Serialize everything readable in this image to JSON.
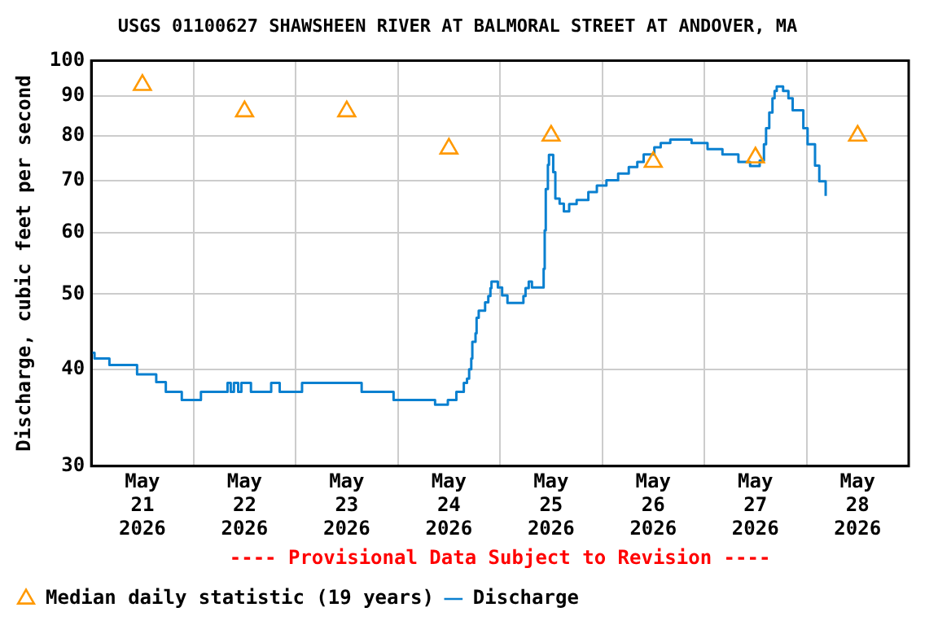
{
  "chart_data": {
    "type": "step",
    "title": "USGS 01100627 SHAWSHEEN RIVER AT BALMORAL STREET AT ANDOVER, MA",
    "ylabel": "Discharge, cubic feet per second",
    "annotations": [
      "---- Provisional Data Subject to Revision ----"
    ],
    "log": "y",
    "grid": true,
    "legend": "bottom",
    "xlim": [
      "2026-05-21",
      "2026-05-29"
    ],
    "xticks": [
      {
        "value": "2026-05-21T00:00",
        "label": null
      },
      {
        "value": "2026-05-21T12:00",
        "label": "May 21 2026"
      },
      {
        "value": "2026-05-22T00:00",
        "label": null
      },
      {
        "value": "2026-05-22T12:00",
        "label": "May 22 2026"
      },
      {
        "value": "2026-05-23T00:00",
        "label": null
      },
      {
        "value": "2026-05-23T12:00",
        "label": "May 23 2026"
      },
      {
        "value": "2026-05-24T00:00",
        "label": null
      },
      {
        "value": "2026-05-24T12:00",
        "label": "May 24 2026"
      },
      {
        "value": "2026-05-25T00:00",
        "label": null
      },
      {
        "value": "2026-05-25T12:00",
        "label": "May 25 2026"
      },
      {
        "value": "2026-05-26T00:00",
        "label": null
      },
      {
        "value": "2026-05-26T12:00",
        "label": "May 26 2026"
      },
      {
        "value": "2026-05-27T00:00",
        "label": null
      },
      {
        "value": "2026-05-27T12:00",
        "label": "May 27 2026"
      },
      {
        "value": "2026-05-28T00:00",
        "label": null
      },
      {
        "value": "2026-05-28T12:00",
        "label": "May 28 2026"
      },
      {
        "value": "2026-05-29T00:00",
        "label": null
      }
    ],
    "ylim": [
      30,
      100
    ],
    "yticks": [
      30,
      40,
      50,
      60,
      70,
      80,
      90,
      100
    ],
    "series": [
      {
        "name": "Median daily statistic (19 years)",
        "type": "scatter",
        "marker": "triangle",
        "color": "#ff9900",
        "x": [
          "2026-05-21T12:00",
          "2026-05-22T12:00",
          "2026-05-23T12:00",
          "2026-05-24T12:00",
          "2026-05-25T12:00",
          "2026-05-26T12:00",
          "2026-05-27T12:00",
          "2026-05-28T12:00"
        ],
        "values": [
          93,
          86,
          86,
          77,
          80,
          74,
          75,
          80
        ]
      },
      {
        "name": "Discharge",
        "type": "step",
        "marker": "none",
        "color": "#0a80d0",
        "x": [
          "2026-05-21T00:00",
          "2026-05-21T00:45",
          "2026-05-21T04:15",
          "2026-05-21T10:45",
          "2026-05-21T15:15",
          "2026-05-21T17:30",
          "2026-05-21T21:15",
          "2026-05-22T01:45",
          "2026-05-22T08:00",
          "2026-05-22T08:45",
          "2026-05-22T09:30",
          "2026-05-22T10:30",
          "2026-05-22T11:15",
          "2026-05-22T13:30",
          "2026-05-22T18:15",
          "2026-05-22T20:15",
          "2026-05-23T01:30",
          "2026-05-23T15:30",
          "2026-05-23T23:00",
          "2026-05-24T08:45",
          "2026-05-24T11:45",
          "2026-05-24T13:45",
          "2026-05-24T15:30",
          "2026-05-24T16:15",
          "2026-05-24T16:45",
          "2026-05-24T17:15",
          "2026-05-24T17:30",
          "2026-05-24T18:15",
          "2026-05-24T18:30",
          "2026-05-24T19:00",
          "2026-05-24T20:30",
          "2026-05-24T21:15",
          "2026-05-24T21:45",
          "2026-05-24T22:00",
          "2026-05-24T23:30",
          "2026-05-25T00:30",
          "2026-05-25T01:45",
          "2026-05-25T05:30",
          "2026-05-25T06:00",
          "2026-05-25T06:45",
          "2026-05-25T07:30",
          "2026-05-25T10:15",
          "2026-05-25T10:30",
          "2026-05-25T10:45",
          "2026-05-25T11:15",
          "2026-05-25T11:30",
          "2026-05-25T12:30",
          "2026-05-25T13:00",
          "2026-05-25T14:00",
          "2026-05-25T15:00",
          "2026-05-25T16:15",
          "2026-05-25T18:00",
          "2026-05-25T20:45",
          "2026-05-25T22:45",
          "2026-05-26T01:00",
          "2026-05-26T03:45",
          "2026-05-26T06:15",
          "2026-05-26T08:15",
          "2026-05-26T09:45",
          "2026-05-26T12:15",
          "2026-05-26T13:45",
          "2026-05-26T16:00",
          "2026-05-26T21:00",
          "2026-05-27T00:45",
          "2026-05-27T04:15",
          "2026-05-27T08:00",
          "2026-05-27T10:45",
          "2026-05-27T13:00",
          "2026-05-27T14:00",
          "2026-05-27T14:30",
          "2026-05-27T15:15",
          "2026-05-27T16:00",
          "2026-05-27T16:30",
          "2026-05-27T17:00",
          "2026-05-27T18:30",
          "2026-05-27T19:45",
          "2026-05-27T20:45",
          "2026-05-27T23:15",
          "2026-05-28T00:15",
          "2026-05-28T02:00",
          "2026-05-28T03:00",
          "2026-05-28T04:30"
        ],
        "values": [
          42.0,
          41.3,
          40.5,
          39.4,
          38.5,
          37.4,
          36.5,
          37.4,
          38.4,
          37.4,
          38.4,
          37.4,
          38.4,
          37.4,
          38.4,
          37.4,
          38.4,
          37.4,
          36.5,
          36.0,
          36.5,
          37.4,
          38.4,
          38.9,
          40.0,
          41.3,
          43.4,
          44.5,
          46.6,
          47.6,
          48.8,
          49.7,
          50.9,
          51.9,
          51.0,
          49.8,
          48.7,
          49.7,
          50.9,
          51.9,
          51.0,
          53.9,
          60.4,
          68.3,
          73.4,
          75.6,
          71.8,
          66.4,
          65.4,
          63.9,
          65.3,
          66.1,
          67.7,
          69.0,
          70.1,
          71.5,
          72.9,
          74.0,
          75.7,
          77.3,
          78.3,
          79.1,
          78.3,
          76.9,
          75.7,
          74.0,
          73.1,
          74.3,
          78.0,
          81.8,
          85.7,
          89.4,
          91.4,
          92.6,
          91.4,
          89.4,
          86.3,
          81.8,
          78.0,
          73.2,
          69.9,
          66.9
        ]
      }
    ]
  }
}
